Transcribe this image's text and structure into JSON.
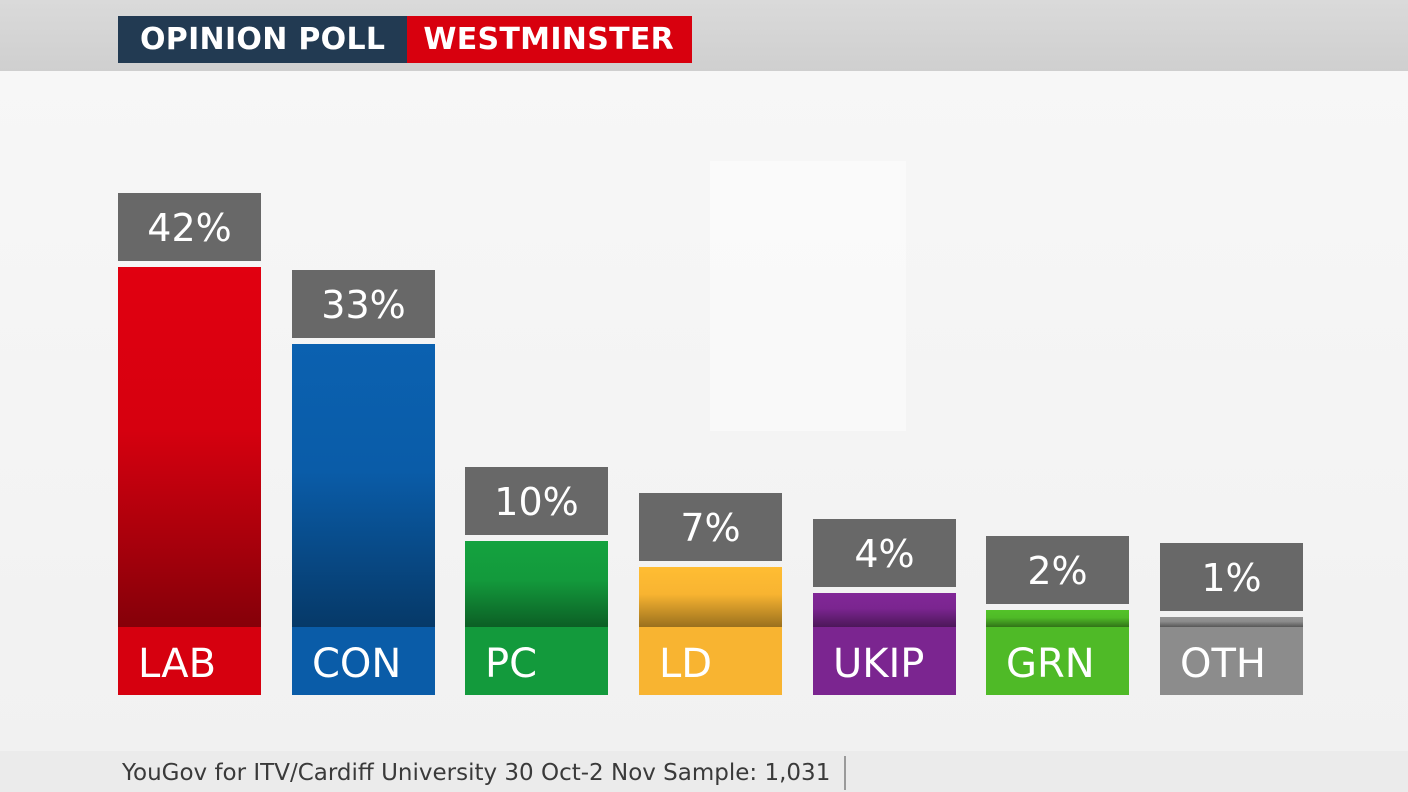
{
  "header": {
    "category": "OPINION POLL",
    "region": "WESTMINSTER"
  },
  "chart_data": {
    "type": "bar",
    "categories": [
      "LAB",
      "CON",
      "PC",
      "LD",
      "UKIP",
      "GRN",
      "OTH"
    ],
    "values": [
      42,
      33,
      10,
      7,
      4,
      2,
      1
    ],
    "value_labels": [
      "42%",
      "33%",
      "10%",
      "7%",
      "4%",
      "2%",
      "1%"
    ],
    "colors": [
      "#d6000f",
      "#0a5ca8",
      "#139a3c",
      "#f8b431",
      "#7b2590",
      "#4fba27",
      "#8c8c8c"
    ],
    "ylim": [
      0,
      42
    ],
    "grid": false,
    "legend": "none"
  },
  "footer": {
    "source": "YouGov for ITV/Cardiff University 30 Oct-2 Nov Sample: 1,031"
  }
}
